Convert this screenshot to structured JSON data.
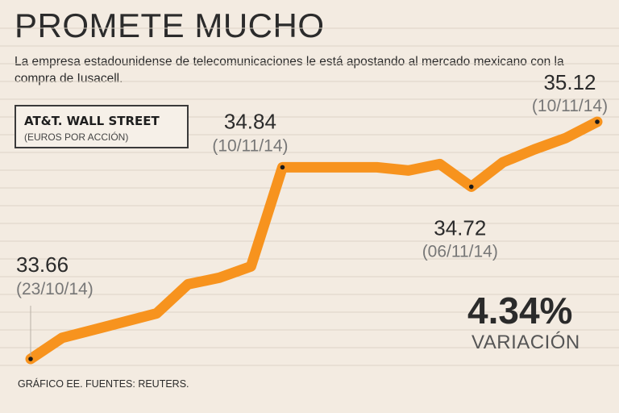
{
  "header": {
    "title": "PROMETE MUCHO",
    "subtitle": "La empresa estadounidense de telecomunicaciones le está apostando al mercado mexicano con la compra de Iusacell."
  },
  "legend": {
    "name": "AT&T. WALL STREET",
    "unit": "(EUROS POR ACCIÓN)"
  },
  "highlight": {
    "value": "4.34%",
    "label": "VARIACIÓN"
  },
  "footer": {
    "source": "GRÁFICO EE. FUENTES: REUTERS."
  },
  "colors": {
    "line": "#f7931e",
    "background": "#f3ebe1",
    "grid": "#ddd3c6"
  },
  "chart_data": {
    "type": "line",
    "title": "PROMETE MUCHO",
    "grid": true,
    "ylim": [
      33.6,
      35.2
    ],
    "series": [
      {
        "name": "AT&T. WALL STREET",
        "values": [
          33.66,
          33.79,
          33.84,
          33.89,
          33.94,
          34.12,
          34.16,
          34.23,
          34.84,
          34.84,
          34.84,
          34.84,
          34.82,
          34.86,
          34.72,
          34.87,
          34.95,
          35.02,
          35.12
        ]
      }
    ],
    "annotations": [
      {
        "index": 0,
        "value": "33.66",
        "date": "(23/10/14)"
      },
      {
        "index": 8,
        "value": "34.84",
        "date": "(10/11/14)"
      },
      {
        "index": 14,
        "value": "34.72",
        "date": "(06/11/14)"
      },
      {
        "index": 18,
        "value": "35.12",
        "date": "(10/11/14)"
      }
    ]
  }
}
